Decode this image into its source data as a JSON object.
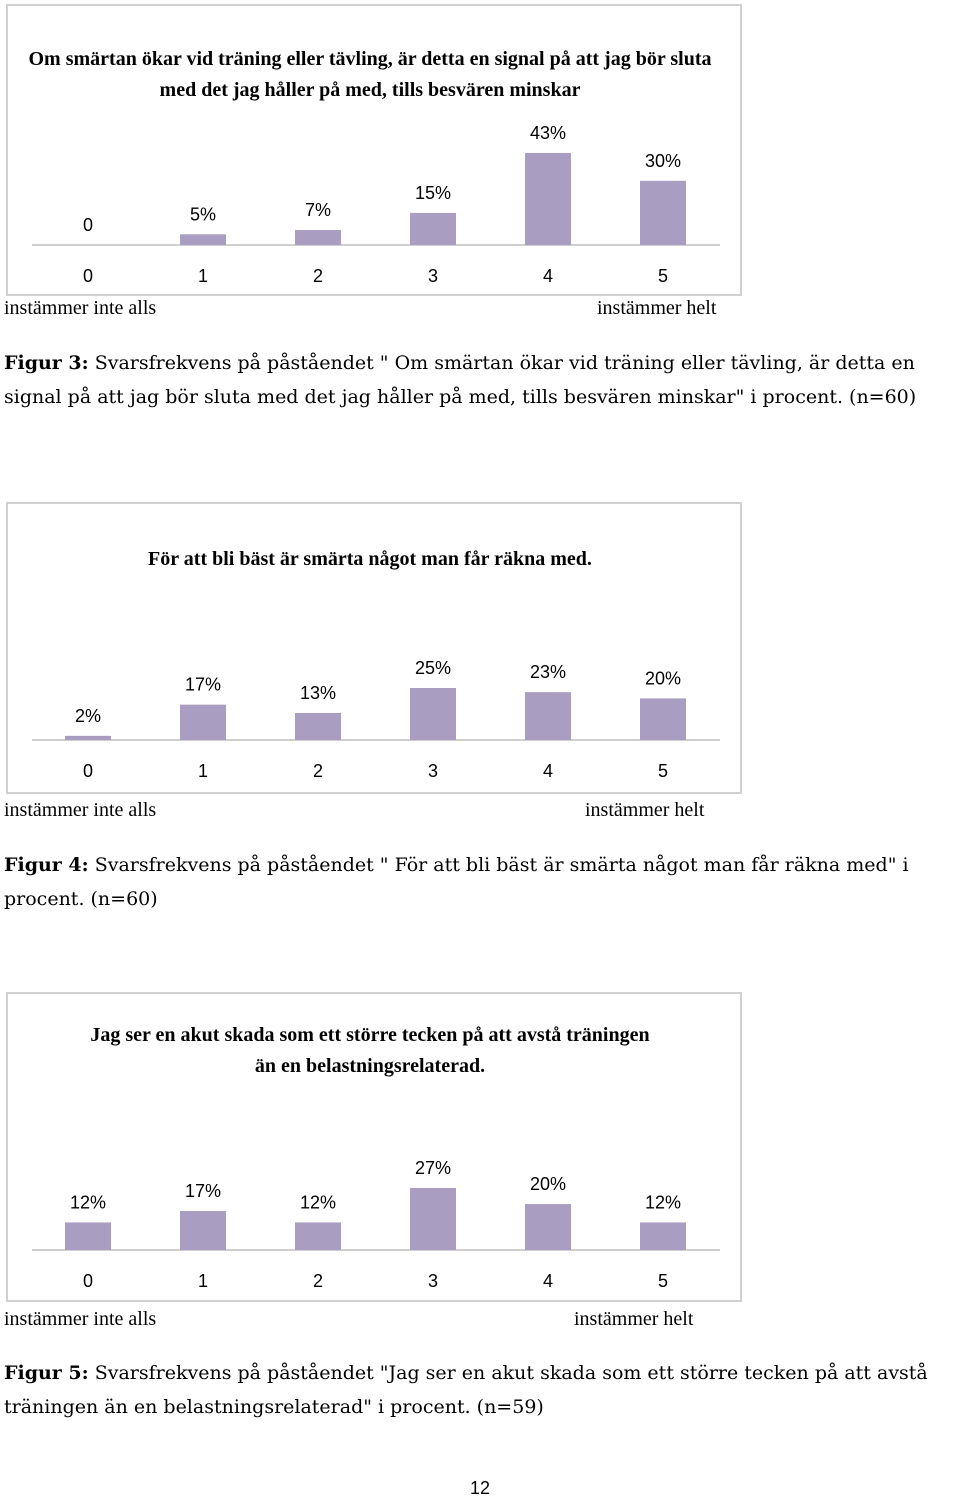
{
  "chart_data": [
    {
      "type": "bar",
      "title": "Om smärtan ökar vid träning eller tävling, är detta en signal på att jag bör sluta med det jag håller på med, tills besvären minskar",
      "categories": [
        "0",
        "1",
        "2",
        "3",
        "4",
        "5"
      ],
      "values": [
        0,
        5,
        7,
        15,
        43,
        30
      ],
      "value_labels": [
        "0",
        "5%",
        "7%",
        "15%",
        "43%",
        "30%"
      ],
      "ylim": [
        0,
        43
      ],
      "scale_left": "instämmer inte alls",
      "scale_right": "instämmer helt",
      "bar_color": "#a99dc1"
    },
    {
      "type": "bar",
      "title": "För att bli bäst är smärta något man får räkna med.",
      "categories": [
        "0",
        "1",
        "2",
        "3",
        "4",
        "5"
      ],
      "values": [
        2,
        17,
        13,
        25,
        23,
        20
      ],
      "value_labels": [
        "2%",
        "17%",
        "13%",
        "25%",
        "23%",
        "20%"
      ],
      "ylim": [
        0,
        25
      ],
      "scale_left": "instämmer inte alls",
      "scale_right": "instämmer helt",
      "bar_color": "#a99dc1"
    },
    {
      "type": "bar",
      "title": "Jag ser en akut skada som ett större tecken på att avstå träningen än en belastningsrelaterad.",
      "categories": [
        "0",
        "1",
        "2",
        "3",
        "4",
        "5"
      ],
      "values": [
        12,
        17,
        12,
        27,
        20,
        12
      ],
      "value_labels": [
        "12%",
        "17%",
        "12%",
        "27%",
        "20%",
        "12%"
      ],
      "ylim": [
        0,
        27
      ],
      "scale_left": "instämmer inte alls",
      "scale_right": "instämmer helt",
      "bar_color": "#a99dc1"
    }
  ],
  "captions": [
    {
      "label": "Figur 3:",
      "text": " Svarsfrekvens på påståendet \" Om smärtan ökar vid träning eller tävling, är detta en signal på att jag bör sluta med det jag håller på med, tills besvären minskar\" i procent. (n=60)"
    },
    {
      "label": "Figur 4:",
      "text": " Svarsfrekvens på påståendet \" För att bli bäst är smärta något man får räkna med\" i procent. (n=60)"
    },
    {
      "label": "Figur 5:",
      "text": " Svarsfrekvens på påståendet \"Jag ser en akut skada som ett större tecken på att avstå träningen än en belastningsrelaterad\"  i procent. (n=59)"
    }
  ],
  "page_number": "12"
}
